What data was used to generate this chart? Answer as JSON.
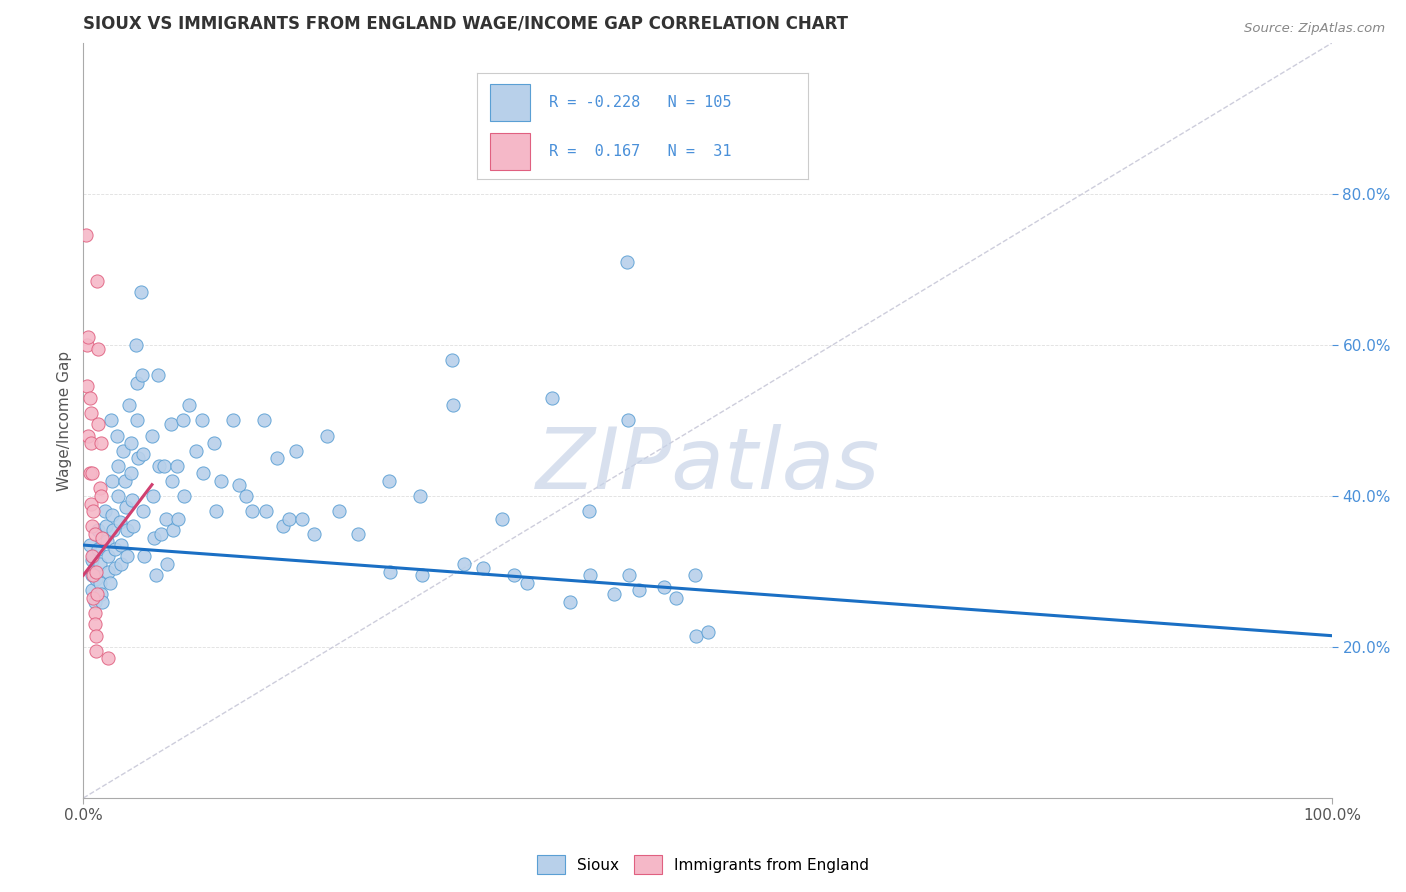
{
  "title": "SIOUX VS IMMIGRANTS FROM ENGLAND WAGE/INCOME GAP CORRELATION CHART",
  "source_text": "Source: ZipAtlas.com",
  "ylabel": "Wage/Income Gap",
  "xmin": 0.0,
  "xmax": 1.0,
  "ymin": 0.0,
  "ymax": 1.0,
  "ytick_labels": [
    "20.0%",
    "40.0%",
    "60.0%",
    "80.0%"
  ],
  "ytick_values": [
    0.2,
    0.4,
    0.6,
    0.8
  ],
  "blue_color": "#b8d0ea",
  "blue_edge_color": "#5a9fd4",
  "pink_color": "#f5b8c8",
  "pink_edge_color": "#e06080",
  "blue_line_color": "#1a6fc4",
  "pink_line_color": "#d04070",
  "ref_line_color": "#c8c8d8",
  "title_color": "#333333",
  "watermark": "ZIPatlas",
  "watermark_color": "#c8d4e8",
  "legend_text_color": "#4a90d9",
  "blue_trend_x": [
    0.0,
    1.0
  ],
  "blue_trend_y": [
    0.335,
    0.215
  ],
  "pink_trend_x": [
    0.0,
    0.055
  ],
  "pink_trend_y": [
    0.295,
    0.415
  ],
  "blue_dots": [
    [
      0.005,
      0.335
    ],
    [
      0.007,
      0.315
    ],
    [
      0.007,
      0.295
    ],
    [
      0.007,
      0.275
    ],
    [
      0.008,
      0.32
    ],
    [
      0.008,
      0.3
    ],
    [
      0.009,
      0.26
    ],
    [
      0.01,
      0.29
    ],
    [
      0.012,
      0.355
    ],
    [
      0.012,
      0.33
    ],
    [
      0.013,
      0.31
    ],
    [
      0.013,
      0.285
    ],
    [
      0.014,
      0.27
    ],
    [
      0.015,
      0.26
    ],
    [
      0.017,
      0.38
    ],
    [
      0.018,
      0.36
    ],
    [
      0.019,
      0.34
    ],
    [
      0.02,
      0.32
    ],
    [
      0.02,
      0.3
    ],
    [
      0.021,
      0.285
    ],
    [
      0.022,
      0.5
    ],
    [
      0.023,
      0.42
    ],
    [
      0.023,
      0.375
    ],
    [
      0.024,
      0.355
    ],
    [
      0.025,
      0.33
    ],
    [
      0.025,
      0.305
    ],
    [
      0.027,
      0.48
    ],
    [
      0.028,
      0.44
    ],
    [
      0.028,
      0.4
    ],
    [
      0.029,
      0.365
    ],
    [
      0.03,
      0.335
    ],
    [
      0.03,
      0.31
    ],
    [
      0.032,
      0.46
    ],
    [
      0.033,
      0.42
    ],
    [
      0.034,
      0.385
    ],
    [
      0.035,
      0.355
    ],
    [
      0.035,
      0.32
    ],
    [
      0.037,
      0.52
    ],
    [
      0.038,
      0.47
    ],
    [
      0.038,
      0.43
    ],
    [
      0.039,
      0.395
    ],
    [
      0.04,
      0.36
    ],
    [
      0.042,
      0.6
    ],
    [
      0.043,
      0.55
    ],
    [
      0.043,
      0.5
    ],
    [
      0.044,
      0.45
    ],
    [
      0.046,
      0.67
    ],
    [
      0.047,
      0.56
    ],
    [
      0.048,
      0.455
    ],
    [
      0.048,
      0.38
    ],
    [
      0.049,
      0.32
    ],
    [
      0.055,
      0.48
    ],
    [
      0.056,
      0.4
    ],
    [
      0.057,
      0.345
    ],
    [
      0.058,
      0.295
    ],
    [
      0.06,
      0.56
    ],
    [
      0.061,
      0.44
    ],
    [
      0.062,
      0.35
    ],
    [
      0.065,
      0.44
    ],
    [
      0.066,
      0.37
    ],
    [
      0.067,
      0.31
    ],
    [
      0.07,
      0.495
    ],
    [
      0.071,
      0.42
    ],
    [
      0.072,
      0.355
    ],
    [
      0.075,
      0.44
    ],
    [
      0.076,
      0.37
    ],
    [
      0.08,
      0.5
    ],
    [
      0.081,
      0.4
    ],
    [
      0.085,
      0.52
    ],
    [
      0.09,
      0.46
    ],
    [
      0.095,
      0.5
    ],
    [
      0.096,
      0.43
    ],
    [
      0.105,
      0.47
    ],
    [
      0.106,
      0.38
    ],
    [
      0.11,
      0.42
    ],
    [
      0.12,
      0.5
    ],
    [
      0.125,
      0.415
    ],
    [
      0.13,
      0.4
    ],
    [
      0.135,
      0.38
    ],
    [
      0.145,
      0.5
    ],
    [
      0.146,
      0.38
    ],
    [
      0.155,
      0.45
    ],
    [
      0.16,
      0.36
    ],
    [
      0.165,
      0.37
    ],
    [
      0.17,
      0.46
    ],
    [
      0.175,
      0.37
    ],
    [
      0.185,
      0.35
    ],
    [
      0.195,
      0.48
    ],
    [
      0.205,
      0.38
    ],
    [
      0.22,
      0.35
    ],
    [
      0.245,
      0.42
    ],
    [
      0.246,
      0.3
    ],
    [
      0.27,
      0.4
    ],
    [
      0.271,
      0.295
    ],
    [
      0.295,
      0.58
    ],
    [
      0.296,
      0.52
    ],
    [
      0.305,
      0.31
    ],
    [
      0.32,
      0.305
    ],
    [
      0.335,
      0.37
    ],
    [
      0.345,
      0.295
    ],
    [
      0.355,
      0.285
    ],
    [
      0.375,
      0.53
    ],
    [
      0.39,
      0.26
    ],
    [
      0.405,
      0.38
    ],
    [
      0.406,
      0.295
    ],
    [
      0.425,
      0.27
    ],
    [
      0.435,
      0.71
    ],
    [
      0.436,
      0.5
    ],
    [
      0.437,
      0.295
    ],
    [
      0.445,
      0.275
    ],
    [
      0.465,
      0.28
    ],
    [
      0.475,
      0.265
    ],
    [
      0.49,
      0.295
    ],
    [
      0.491,
      0.215
    ],
    [
      0.5,
      0.22
    ]
  ],
  "pink_dots": [
    [
      0.002,
      0.745
    ],
    [
      0.003,
      0.6
    ],
    [
      0.003,
      0.545
    ],
    [
      0.004,
      0.61
    ],
    [
      0.004,
      0.48
    ],
    [
      0.005,
      0.53
    ],
    [
      0.005,
      0.43
    ],
    [
      0.006,
      0.51
    ],
    [
      0.006,
      0.39
    ],
    [
      0.006,
      0.47
    ],
    [
      0.007,
      0.43
    ],
    [
      0.007,
      0.36
    ],
    [
      0.007,
      0.32
    ],
    [
      0.008,
      0.38
    ],
    [
      0.008,
      0.295
    ],
    [
      0.008,
      0.265
    ],
    [
      0.009,
      0.35
    ],
    [
      0.009,
      0.245
    ],
    [
      0.009,
      0.23
    ],
    [
      0.01,
      0.3
    ],
    [
      0.01,
      0.215
    ],
    [
      0.01,
      0.195
    ],
    [
      0.011,
      0.27
    ],
    [
      0.011,
      0.685
    ],
    [
      0.012,
      0.595
    ],
    [
      0.012,
      0.495
    ],
    [
      0.013,
      0.41
    ],
    [
      0.014,
      0.47
    ],
    [
      0.014,
      0.4
    ],
    [
      0.015,
      0.345
    ],
    [
      0.02,
      0.185
    ]
  ]
}
